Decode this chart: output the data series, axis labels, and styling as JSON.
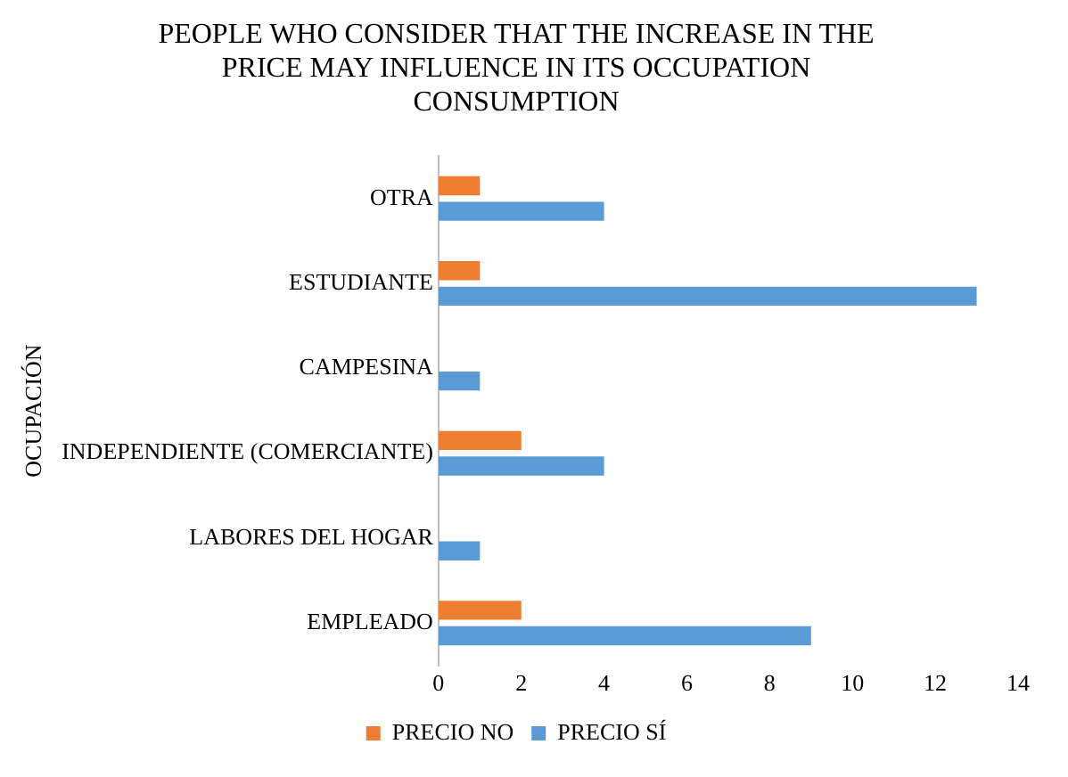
{
  "chart_data": {
    "type": "bar",
    "orientation": "horizontal",
    "title": "PEOPLE WHO CONSIDER THAT THE INCREASE IN THE PRICE MAY INFLUENCE IN ITS OCCUPATION CONSUMPTION",
    "ylabel": "OCUPACIÓN",
    "categories": [
      "OTRA",
      "ESTUDIANTE",
      "CAMPESINA",
      "INDEPENDIENTE (COMERCIANTE)",
      "LABORES DEL HOGAR",
      "EMPLEADO"
    ],
    "series": [
      {
        "name": "PRECIO NO",
        "color": "#ed7d31",
        "values": [
          1,
          1,
          0,
          2,
          0,
          2
        ]
      },
      {
        "name": "PRECIO SÍ",
        "color": "#5b9bd5",
        "values": [
          4,
          13,
          1,
          4,
          1,
          9
        ]
      }
    ],
    "xlim": [
      0,
      14
    ],
    "xticks": [
      0,
      2,
      4,
      6,
      8,
      10,
      12,
      14
    ],
    "grid": false,
    "legend": "bottom"
  }
}
